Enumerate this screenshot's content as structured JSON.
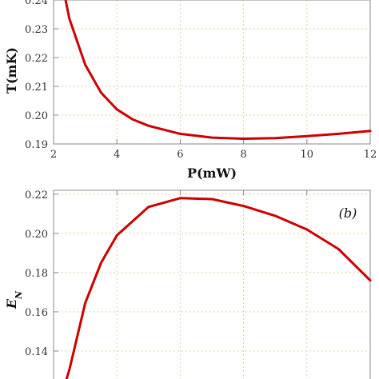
{
  "chart_data": [
    {
      "type": "line",
      "xlabel": "P(mW)",
      "ylabel": "T(mK)",
      "xlim": [
        2,
        12
      ],
      "ylim": [
        0.19,
        0.24
      ],
      "xticks": [
        "2",
        "4",
        "6",
        "8",
        "10",
        "12"
      ],
      "yticks": [
        "0.19",
        "0.20",
        "0.21",
        "0.22",
        "0.23",
        "0.24"
      ],
      "grid": true,
      "series": [
        {
          "color": "#cc0000",
          "x": [
            2.35,
            2.5,
            2.75,
            3.0,
            3.5,
            4.0,
            4.5,
            5.0,
            6.0,
            7.0,
            8.0,
            9.0,
            10.0,
            11.0,
            12.0
          ],
          "y": [
            0.2415,
            0.2335,
            0.2255,
            0.2175,
            0.2078,
            0.202,
            0.1985,
            0.1963,
            0.1935,
            0.1922,
            0.1918,
            0.192,
            0.1927,
            0.1935,
            0.1945
          ]
        }
      ]
    },
    {
      "type": "line",
      "xlabel": "",
      "ylabel": "E_N",
      "ylabel_main": "E",
      "ylabel_sub": "N",
      "annotation": "(b)",
      "ylim": [
        0.12,
        0.222
      ],
      "yticks": [
        "0.14",
        "0.16",
        "0.18",
        "0.20",
        "0.22"
      ],
      "grid": true,
      "series": [
        {
          "color": "#cc0000",
          "x": [
            2.3,
            2.5,
            3.0,
            3.5,
            4.0,
            5.0,
            6.0,
            7.0,
            8.0,
            9.0,
            10.0,
            11.0,
            12.0
          ],
          "y": [
            0.12,
            0.1305,
            0.1645,
            0.185,
            0.199,
            0.2135,
            0.218,
            0.2175,
            0.214,
            0.209,
            0.202,
            0.192,
            0.176
          ]
        }
      ]
    }
  ]
}
